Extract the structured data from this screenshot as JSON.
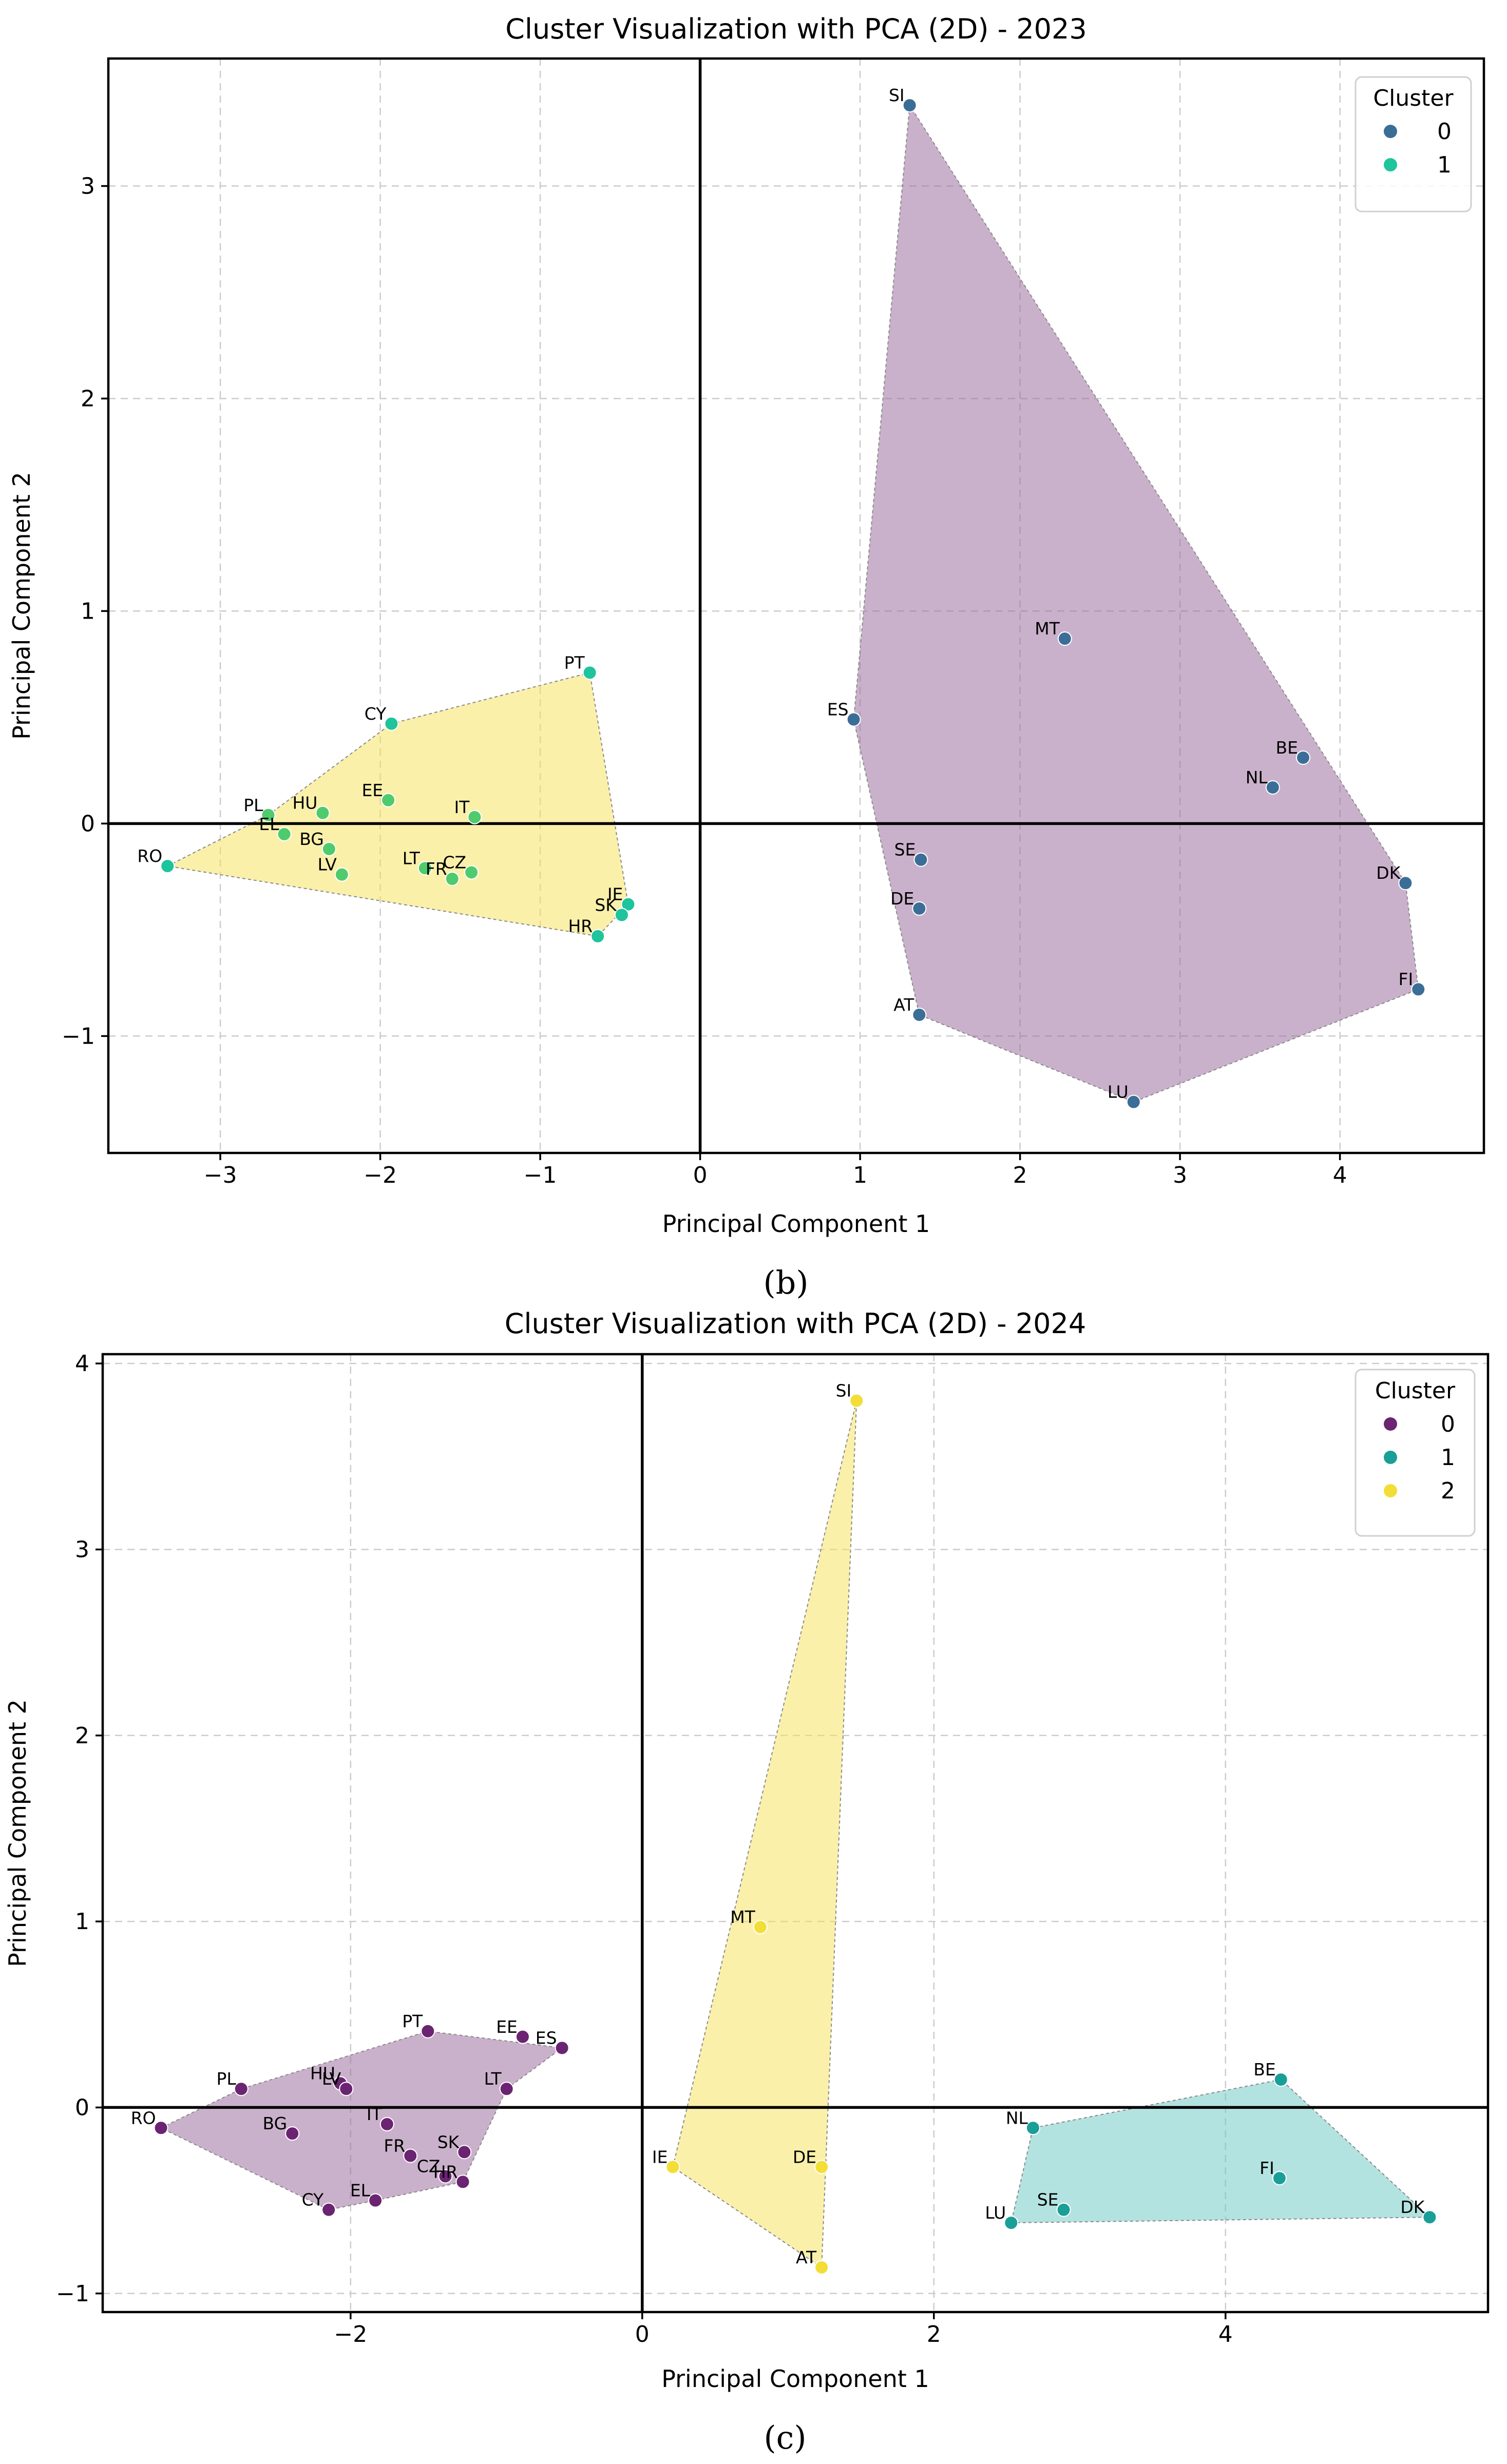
{
  "chart_data": [
    {
      "type": "scatter",
      "title": "Cluster Visualization with PCA (2D) - 2023",
      "xlabel": "Principal Component 1",
      "ylabel": "Principal Component 2",
      "xlim": [
        -3.7,
        4.9
      ],
      "ylim": [
        -1.55,
        3.6
      ],
      "xticks": [
        -3,
        -2,
        -1,
        0,
        1,
        2,
        3,
        4
      ],
      "yticks": [
        -1,
        0,
        1,
        2,
        3
      ],
      "xtick_labels": [
        "−3",
        "−2",
        "−1",
        "0",
        "1",
        "2",
        "3",
        "4"
      ],
      "ytick_labels": [
        "−1",
        "0",
        "1",
        "2",
        "3"
      ],
      "grid": true,
      "legend": {
        "title": "Cluster",
        "position": "top-right",
        "entries": [
          {
            "label": "0",
            "color": "#3b6e97"
          },
          {
            "label": "1",
            "color": "#1ec49b"
          }
        ]
      },
      "caption": "(b)",
      "hulls": [
        {
          "cluster": "1",
          "fill": "#f5e35c",
          "points": [
            [
              -3.33,
              -0.2
            ],
            [
              -2.7,
              0.04
            ],
            [
              -1.93,
              0.47
            ],
            [
              -0.69,
              0.71
            ],
            [
              -0.45,
              -0.38
            ],
            [
              -0.64,
              -0.53
            ]
          ]
        },
        {
          "cluster": "0",
          "fill": "#9a6a9c",
          "points": [
            [
              1.31,
              3.38
            ],
            [
              0.96,
              0.49
            ],
            [
              1.37,
              -0.9
            ],
            [
              2.71,
              -1.31
            ],
            [
              4.49,
              -0.78
            ],
            [
              4.41,
              -0.28
            ]
          ]
        }
      ],
      "points": [
        {
          "label": "SI",
          "x": 1.31,
          "y": 3.38,
          "color": "#3b6e97"
        },
        {
          "label": "MT",
          "x": 2.28,
          "y": 0.87,
          "color": "#3b6e97"
        },
        {
          "label": "ES",
          "x": 0.96,
          "y": 0.49,
          "color": "#3b6e97"
        },
        {
          "label": "BE",
          "x": 3.77,
          "y": 0.31,
          "color": "#3b6e97"
        },
        {
          "label": "NL",
          "x": 3.58,
          "y": 0.17,
          "color": "#3b6e97"
        },
        {
          "label": "SE",
          "x": 1.38,
          "y": -0.17,
          "color": "#3b6e97"
        },
        {
          "label": "DE",
          "x": 1.37,
          "y": -0.4,
          "color": "#3b6e97"
        },
        {
          "label": "DK",
          "x": 4.41,
          "y": -0.28,
          "color": "#3b6e97"
        },
        {
          "label": "FI",
          "x": 4.49,
          "y": -0.78,
          "color": "#3b6e97"
        },
        {
          "label": "AT",
          "x": 1.37,
          "y": -0.9,
          "color": "#3b6e97"
        },
        {
          "label": "LU",
          "x": 2.71,
          "y": -1.31,
          "color": "#3b6e97"
        },
        {
          "label": "PT",
          "x": -0.69,
          "y": 0.71,
          "color": "#1ec49b"
        },
        {
          "label": "CY",
          "x": -1.93,
          "y": 0.47,
          "color": "#1ec49b"
        },
        {
          "label": "EE",
          "x": -1.95,
          "y": 0.11,
          "color": "#4fcb6d"
        },
        {
          "label": "IT",
          "x": -1.41,
          "y": 0.03,
          "color": "#4fcb6d"
        },
        {
          "label": "PL",
          "x": -2.7,
          "y": 0.04,
          "color": "#4fcb6d"
        },
        {
          "label": "HU",
          "x": -2.36,
          "y": 0.05,
          "color": "#4fcb6d"
        },
        {
          "label": "EL",
          "x": -2.6,
          "y": -0.05,
          "color": "#4fcb6d"
        },
        {
          "label": "BG",
          "x": -2.32,
          "y": -0.12,
          "color": "#4fcb6d"
        },
        {
          "label": "LV",
          "x": -2.24,
          "y": -0.24,
          "color": "#4fcb6d"
        },
        {
          "label": "RO",
          "x": -3.33,
          "y": -0.2,
          "color": "#1ec49b"
        },
        {
          "label": "LT",
          "x": -1.72,
          "y": -0.21,
          "color": "#4fcb6d"
        },
        {
          "label": "FR",
          "x": -1.55,
          "y": -0.26,
          "color": "#4fcb6d"
        },
        {
          "label": "CZ",
          "x": -1.43,
          "y": -0.23,
          "color": "#4fcb6d"
        },
        {
          "label": "IE",
          "x": -0.45,
          "y": -0.38,
          "color": "#1ec49b"
        },
        {
          "label": "SK",
          "x": -0.49,
          "y": -0.43,
          "color": "#1ec49b"
        },
        {
          "label": "HR",
          "x": -0.64,
          "y": -0.53,
          "color": "#1ec49b"
        }
      ]
    },
    {
      "type": "scatter",
      "title": "Cluster Visualization with PCA (2D) - 2024",
      "xlabel": "Principal Component 1",
      "ylabel": "Principal Component 2",
      "xlim": [
        -3.7,
        5.8
      ],
      "ylim": [
        -1.1,
        4.05
      ],
      "xticks": [
        -2,
        0,
        2,
        4
      ],
      "yticks": [
        -1,
        0,
        1,
        2,
        3,
        4
      ],
      "xtick_labels": [
        "−2",
        "0",
        "2",
        "4"
      ],
      "ytick_labels": [
        "−1",
        "0",
        "1",
        "2",
        "3",
        "4"
      ],
      "grid": true,
      "legend": {
        "title": "Cluster",
        "position": "top-right",
        "entries": [
          {
            "label": "0",
            "color": "#6b2472"
          },
          {
            "label": "1",
            "color": "#1a9e98"
          },
          {
            "label": "2",
            "color": "#f2de36"
          }
        ]
      },
      "caption": "(c)",
      "hulls": [
        {
          "cluster": "0",
          "fill": "#9a6a9c",
          "points": [
            [
              -3.3,
              -0.11
            ],
            [
              -2.75,
              0.1
            ],
            [
              -1.47,
              0.41
            ],
            [
              -0.55,
              0.32
            ],
            [
              -0.93,
              0.1
            ],
            [
              -1.23,
              -0.4
            ],
            [
              -1.83,
              -0.5
            ],
            [
              -2.15,
              -0.55
            ]
          ]
        },
        {
          "cluster": "2",
          "fill": "#f5e35c",
          "points": [
            [
              1.47,
              3.8
            ],
            [
              0.21,
              -0.32
            ],
            [
              1.23,
              -0.86
            ]
          ]
        },
        {
          "cluster": "1",
          "fill": "#6ec9c5",
          "points": [
            [
              4.38,
              0.15
            ],
            [
              2.68,
              -0.11
            ],
            [
              2.53,
              -0.62
            ],
            [
              5.4,
              -0.59
            ]
          ]
        }
      ],
      "points": [
        {
          "label": "SI",
          "x": 1.47,
          "y": 3.8,
          "color": "#f2de36"
        },
        {
          "label": "MT",
          "x": 0.81,
          "y": 0.97,
          "color": "#f2de36"
        },
        {
          "label": "IE",
          "x": 0.21,
          "y": -0.32,
          "color": "#f2de36"
        },
        {
          "label": "DE",
          "x": 1.23,
          "y": -0.32,
          "color": "#f2de36"
        },
        {
          "label": "AT",
          "x": 1.23,
          "y": -0.86,
          "color": "#f2de36"
        },
        {
          "label": "BE",
          "x": 4.38,
          "y": 0.15,
          "color": "#1a9e98"
        },
        {
          "label": "NL",
          "x": 2.68,
          "y": -0.11,
          "color": "#1a9e98"
        },
        {
          "label": "FI",
          "x": 4.37,
          "y": -0.38,
          "color": "#1a9e98"
        },
        {
          "label": "SE",
          "x": 2.89,
          "y": -0.55,
          "color": "#1a9e98"
        },
        {
          "label": "LU",
          "x": 2.53,
          "y": -0.62,
          "color": "#1a9e98"
        },
        {
          "label": "DK",
          "x": 5.4,
          "y": -0.59,
          "color": "#1a9e98"
        },
        {
          "label": "PT",
          "x": -1.47,
          "y": 0.41,
          "color": "#6b2472"
        },
        {
          "label": "EE",
          "x": -0.82,
          "y": 0.38,
          "color": "#6b2472"
        },
        {
          "label": "ES",
          "x": -0.55,
          "y": 0.32,
          "color": "#6b2472"
        },
        {
          "label": "PL",
          "x": -2.75,
          "y": 0.1,
          "color": "#6b2472"
        },
        {
          "label": "HU",
          "x": -2.07,
          "y": 0.13,
          "color": "#6b2472"
        },
        {
          "label": "LV",
          "x": -2.03,
          "y": 0.1,
          "color": "#6b2472"
        },
        {
          "label": "LT",
          "x": -0.93,
          "y": 0.1,
          "color": "#6b2472"
        },
        {
          "label": "RO",
          "x": -3.3,
          "y": -0.11,
          "color": "#6b2472"
        },
        {
          "label": "BG",
          "x": -2.4,
          "y": -0.14,
          "color": "#6b2472"
        },
        {
          "label": "IT",
          "x": -1.75,
          "y": -0.09,
          "color": "#6b2472"
        },
        {
          "label": "FR",
          "x": -1.59,
          "y": -0.26,
          "color": "#6b2472"
        },
        {
          "label": "SK",
          "x": -1.22,
          "y": -0.24,
          "color": "#6b2472"
        },
        {
          "label": "CZ",
          "x": -1.35,
          "y": -0.37,
          "color": "#6b2472"
        },
        {
          "label": "HR",
          "x": -1.23,
          "y": -0.4,
          "color": "#6b2472"
        },
        {
          "label": "EL",
          "x": -1.83,
          "y": -0.5,
          "color": "#6b2472"
        },
        {
          "label": "CY",
          "x": -2.15,
          "y": -0.55,
          "color": "#6b2472"
        }
      ]
    }
  ]
}
